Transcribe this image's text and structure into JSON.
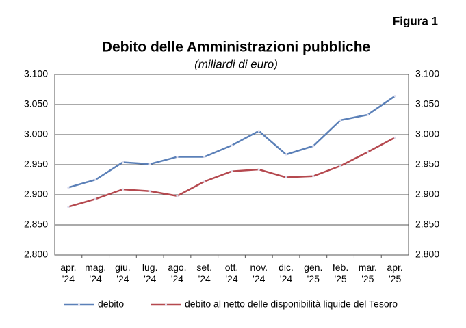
{
  "figure_label": "Figura 1",
  "chart_data": {
    "type": "line",
    "title": "Debito delle Amministrazioni pubbliche",
    "subtitle": "(miliardi di euro)",
    "categories": [
      "apr. '24",
      "mag. '24",
      "giu. '24",
      "lug. '24",
      "ago. '24",
      "set. '24",
      "ott. '24",
      "nov. '24",
      "dic. '24",
      "gen. '25",
      "feb. '25",
      "mar. '25",
      "apr. '25"
    ],
    "series": [
      {
        "name": "debito",
        "color": "#5b80b8",
        "values": [
          2912,
          2925,
          2954,
          2951,
          2963,
          2963,
          2982,
          3006,
          2967,
          2981,
          3024,
          3033,
          3064
        ]
      },
      {
        "name": "debito al netto delle disponibilità liquide del Tesoro",
        "color": "#b5494f",
        "values": [
          2880,
          2893,
          2909,
          2906,
          2898,
          2922,
          2939,
          2942,
          2929,
          2931,
          2948,
          2971,
          2995
        ]
      }
    ],
    "ylim": [
      2800,
      3100
    ],
    "yticks": [
      {
        "value": 2800,
        "label": "2.800"
      },
      {
        "value": 2850,
        "label": "2.850"
      },
      {
        "value": 2900,
        "label": "2.900"
      },
      {
        "value": 2950,
        "label": "2.950"
      },
      {
        "value": 3000,
        "label": "3.000"
      },
      {
        "value": 3050,
        "label": "3.050"
      },
      {
        "value": 3100,
        "label": "3.100"
      }
    ],
    "grid": true,
    "legend": "bottom"
  }
}
